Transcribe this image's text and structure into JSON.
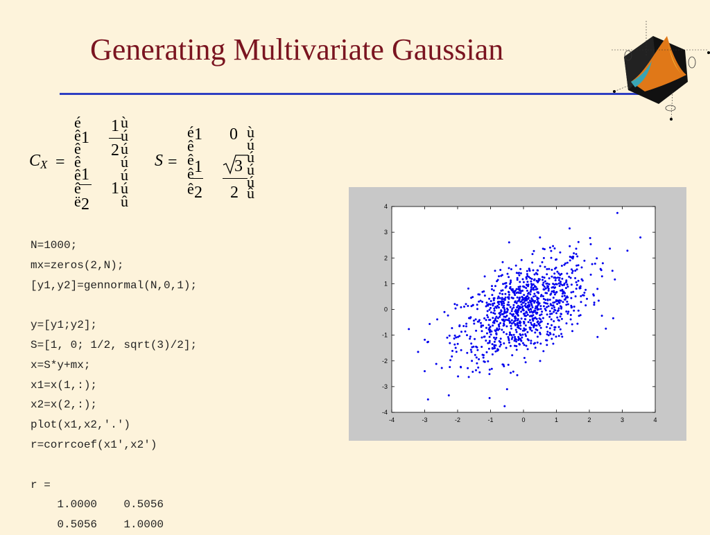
{
  "slide": {
    "title": "Generating Multivariate Gaussian",
    "background": "#fdf3db",
    "title_color": "#7a1420",
    "rule_color": "#2d3ec2"
  },
  "logo": {
    "name": "matlab-membrane-logo"
  },
  "equations": {
    "cx": {
      "lhs_symbol": "C",
      "lhs_subscript": "X",
      "equals": "=",
      "bracket_left_glyphs": [
        "é",
        "ê",
        "ê",
        "ê",
        "ê",
        "ê",
        "ë"
      ],
      "bracket_right_glyphs": [
        "ù",
        "ú",
        "ú",
        "ú",
        "ú",
        "ú",
        "û"
      ],
      "m11": "1",
      "m12_num": "1",
      "m12_den": "2",
      "m21_num": "1",
      "m21_den": "2",
      "m22": "1"
    },
    "s": {
      "lhs_symbol": "S",
      "equals": "=",
      "bracket_left_glyphs": [
        "é",
        "ê",
        "ê",
        "ê",
        "ê"
      ],
      "bracket_right_glyphs": [
        "ù",
        "ú",
        "ú",
        "ú",
        "ú",
        "û"
      ],
      "m11": "1",
      "m12": "0",
      "m21_num": "1",
      "m21_den": "2",
      "m22_sqrt_arg": "3",
      "m22_den": "2"
    }
  },
  "code": {
    "lines": [
      "N=1000;",
      "mx=zeros(2,N);",
      "[y1,y2]=gennormal(N,0,1);",
      "",
      "y=[y1;y2];",
      "S=[1, 0; 1/2, sqrt(3)/2];",
      "x=S*y+mx;",
      "x1=x(1,:);",
      "x2=x(2,:);",
      "plot(x1,x2,'.')",
      "r=corrcoef(x1',x2')",
      "",
      "r =",
      "    1.0000    0.5056",
      "    0.5056    1.0000"
    ]
  },
  "chart_data": {
    "type": "scatter",
    "title": "",
    "xlabel": "",
    "ylabel": "",
    "xlim": [
      -4,
      4
    ],
    "ylim": [
      -4,
      4
    ],
    "xticks": [
      -4,
      -3,
      -2,
      -1,
      0,
      1,
      2,
      3,
      4
    ],
    "yticks": [
      -4,
      -3,
      -2,
      -1,
      0,
      1,
      2,
      3,
      4
    ],
    "grid": false,
    "legend": "none",
    "marker_color": "#0000ee",
    "n_points": 1000,
    "correlation": 0.5056,
    "outlier_points": [
      {
        "x": -3.2,
        "y": -1.65
      },
      {
        "x": -3.0,
        "y": -2.4
      },
      {
        "x": -2.9,
        "y": -3.5
      },
      {
        "x": -2.4,
        "y": -0.1
      },
      {
        "x": 0.5,
        "y": 2.8
      },
      {
        "x": 1.4,
        "y": 3.15
      },
      {
        "x": 2.85,
        "y": 3.75
      },
      {
        "x": 3.55,
        "y": 2.8
      },
      {
        "x": -0.5,
        "y": -3.1
      },
      {
        "x": 2.5,
        "y": -0.75
      },
      {
        "x": 2.7,
        "y": 1.5
      }
    ]
  }
}
